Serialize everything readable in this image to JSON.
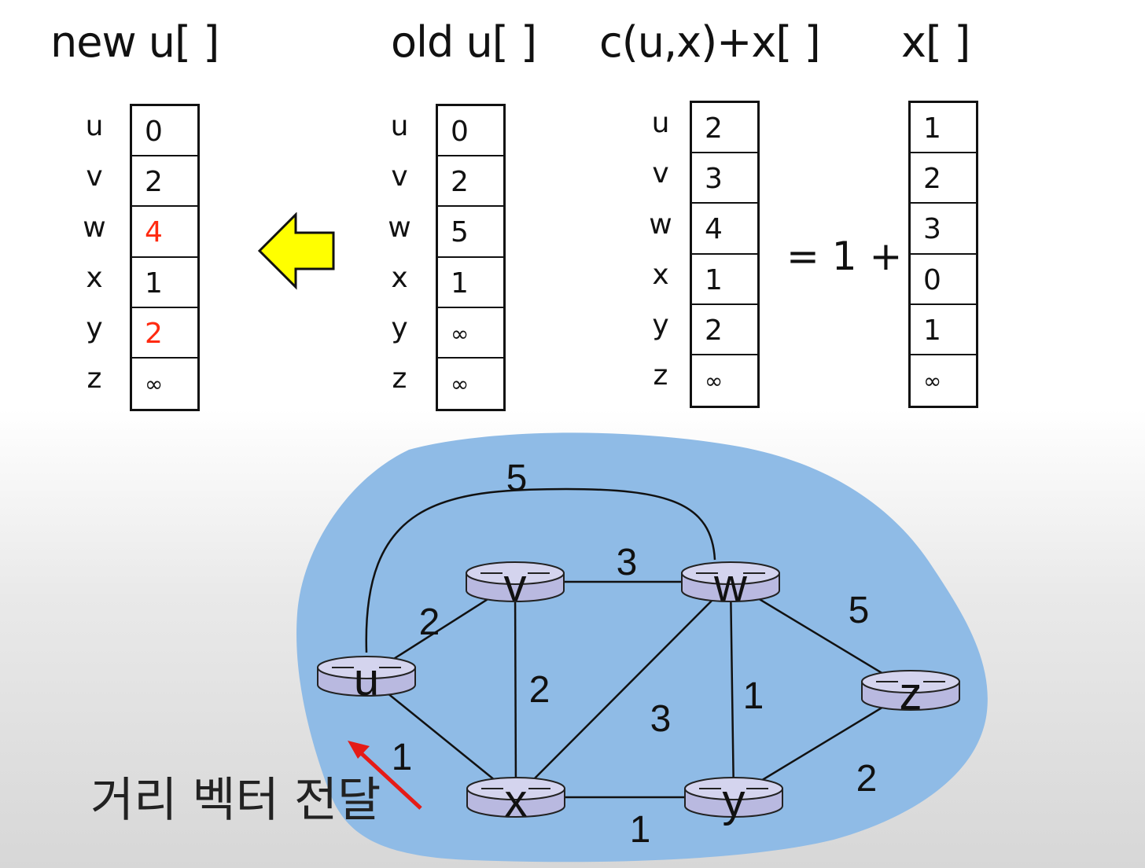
{
  "titles": {
    "new_u": "new u[ ]",
    "old_u": "old u[ ]",
    "cux": "c(u,x)+x[ ]",
    "x": "x[ ]"
  },
  "row_labels": [
    "u",
    "v",
    "w",
    "x",
    "y",
    "z"
  ],
  "vectors": {
    "new_u": {
      "values": [
        "0",
        "2",
        "4",
        "1",
        "2",
        "∞"
      ],
      "highlight_rows": [
        2,
        4
      ],
      "highlight_color": "#ff2a10"
    },
    "old_u": {
      "values": [
        "0",
        "2",
        "5",
        "1",
        "∞",
        "∞"
      ]
    },
    "cux": {
      "values": [
        "2",
        "3",
        "4",
        "1",
        "2",
        "∞"
      ]
    },
    "x": {
      "values": [
        "1",
        "2",
        "3",
        "0",
        "1",
        "∞"
      ]
    }
  },
  "equation": "= 1 +",
  "update_arrow": {
    "icon": "left-arrow-icon",
    "fill": "#ffff00"
  },
  "network": {
    "region_color": "#8fbbe6",
    "router_color": "#b9b9e0",
    "nodes": [
      "u",
      "v",
      "w",
      "x",
      "y",
      "z"
    ],
    "edges": [
      {
        "from": "u",
        "to": "v",
        "cost": "2"
      },
      {
        "from": "u",
        "to": "w",
        "cost": "5"
      },
      {
        "from": "u",
        "to": "x",
        "cost": "1"
      },
      {
        "from": "v",
        "to": "w",
        "cost": "3"
      },
      {
        "from": "v",
        "to": "x",
        "cost": "2"
      },
      {
        "from": "x",
        "to": "w",
        "cost": "3"
      },
      {
        "from": "x",
        "to": "y",
        "cost": "1"
      },
      {
        "from": "w",
        "to": "y",
        "cost": "1"
      },
      {
        "from": "w",
        "to": "z",
        "cost": "5"
      },
      {
        "from": "y",
        "to": "z",
        "cost": "2"
      }
    ]
  },
  "message_arrow": {
    "color": "#e51b17"
  },
  "caption": "거리 벡터 전달"
}
